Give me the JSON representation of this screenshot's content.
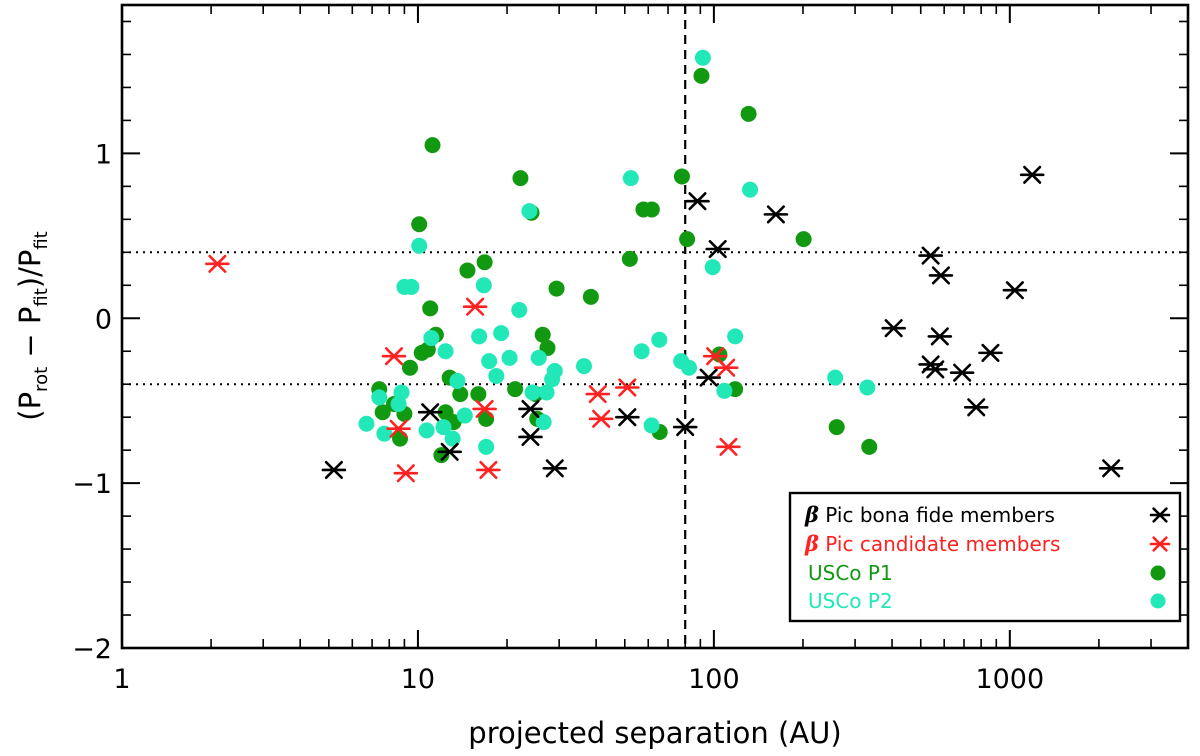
{
  "chart_data": {
    "type": "scatter",
    "title": "",
    "xlabel": "projected separation (AU)",
    "ylabel": {
      "a": "(P",
      "b": "rot",
      "c": " − P",
      "d": "fit",
      "e": ")/P",
      "f": "fit"
    },
    "xscale": "log",
    "xlim": [
      1,
      4000
    ],
    "ylim": [
      -2.0,
      1.9
    ],
    "x_ticks": [
      {
        "value": 1,
        "label": "1"
      },
      {
        "value": 10,
        "label": "10"
      },
      {
        "value": 100,
        "label": "100"
      },
      {
        "value": 1000,
        "label": "1000"
      }
    ],
    "y_ticks": [
      {
        "value": 1,
        "label": "1"
      },
      {
        "value": 0,
        "label": "0"
      },
      {
        "value": -1,
        "label": "−1"
      },
      {
        "value": -2,
        "label": "−2"
      }
    ],
    "reference_lines": {
      "horizontal_dotted": [
        0.4,
        -0.4
      ],
      "vertical_dashed": 80
    },
    "legend_position": "bottom-right",
    "series": [
      {
        "name": "β Pic bona fide members",
        "label_prefix": "β",
        "label_rest": " Pic bona fide members",
        "marker": "asterisk",
        "color": "#000000",
        "points": [
          [
            5.2,
            -0.92
          ],
          [
            11,
            -0.57
          ],
          [
            12.8,
            -0.81
          ],
          [
            24,
            -0.55
          ],
          [
            24,
            -0.72
          ],
          [
            29,
            -0.91
          ],
          [
            51,
            -0.6
          ],
          [
            80,
            -0.66
          ],
          [
            88,
            0.71
          ],
          [
            96,
            -0.36
          ],
          [
            103,
            0.42
          ],
          [
            162,
            0.63
          ],
          [
            405,
            -0.06
          ],
          [
            540,
            0.38
          ],
          [
            540,
            -0.28
          ],
          [
            560,
            -0.31
          ],
          [
            580,
            -0.11
          ],
          [
            585,
            0.26
          ],
          [
            690,
            -0.33
          ],
          [
            770,
            -0.54
          ],
          [
            860,
            -0.21
          ],
          [
            1040,
            0.17
          ],
          [
            1190,
            0.87
          ],
          [
            2200,
            -0.91
          ]
        ]
      },
      {
        "name": "β Pic candidate members",
        "label_prefix": "β",
        "label_rest": " Pic candidate members",
        "marker": "asterisk",
        "color": "#ff2222",
        "points": [
          [
            2.1,
            0.33
          ],
          [
            8.3,
            -0.23
          ],
          [
            8.6,
            -0.67
          ],
          [
            9.1,
            -0.94
          ],
          [
            15.6,
            0.07
          ],
          [
            16.8,
            -0.55
          ],
          [
            17.3,
            -0.92
          ],
          [
            40.5,
            -0.46
          ],
          [
            41.6,
            -0.61
          ],
          [
            51,
            -0.42
          ],
          [
            101,
            -0.23
          ],
          [
            110,
            -0.3
          ],
          [
            112,
            -0.78
          ]
        ]
      },
      {
        "name": "USCo P1",
        "marker": "circle",
        "color": "#119911",
        "points": [
          [
            7.4,
            -0.43
          ],
          [
            7.6,
            -0.57
          ],
          [
            8.3,
            -0.52
          ],
          [
            8.7,
            -0.73
          ],
          [
            9.0,
            -0.58
          ],
          [
            9.4,
            -0.3
          ],
          [
            10.1,
            0.57
          ],
          [
            10.3,
            -0.21
          ],
          [
            10.8,
            -0.19
          ],
          [
            11.0,
            0.06
          ],
          [
            11.2,
            1.05
          ],
          [
            11.5,
            -0.1
          ],
          [
            12.0,
            -0.83
          ],
          [
            12.4,
            -0.57
          ],
          [
            12.8,
            -0.36
          ],
          [
            13.2,
            -0.63
          ],
          [
            13.9,
            -0.46
          ],
          [
            14.7,
            0.29
          ],
          [
            16.0,
            -0.46
          ],
          [
            16.8,
            0.34
          ],
          [
            17.0,
            -0.61
          ],
          [
            21.3,
            -0.43
          ],
          [
            22.2,
            0.85
          ],
          [
            24.2,
            0.64
          ],
          [
            25.0,
            -0.46
          ],
          [
            25.3,
            -0.61
          ],
          [
            26.4,
            -0.1
          ],
          [
            27.4,
            -0.18
          ],
          [
            29.4,
            0.18
          ],
          [
            38.4,
            0.13
          ],
          [
            52.0,
            0.36
          ],
          [
            57.8,
            0.66
          ],
          [
            61.7,
            0.66
          ],
          [
            65.6,
            -0.69
          ],
          [
            78.0,
            0.86
          ],
          [
            81.2,
            0.48
          ],
          [
            90.8,
            1.47
          ],
          [
            104.4,
            -0.22
          ],
          [
            118.0,
            -0.43
          ],
          [
            131.0,
            1.24
          ],
          [
            201.0,
            0.48
          ],
          [
            260.0,
            -0.66
          ],
          [
            335.0,
            -0.78
          ]
        ]
      },
      {
        "name": "USCo P2",
        "marker": "circle",
        "color": "#22e8b8",
        "points": [
          [
            6.7,
            -0.64
          ],
          [
            7.4,
            -0.48
          ],
          [
            7.7,
            -0.7
          ],
          [
            8.6,
            -0.52
          ],
          [
            8.8,
            -0.45
          ],
          [
            9.0,
            0.19
          ],
          [
            9.5,
            0.19
          ],
          [
            10.1,
            0.44
          ],
          [
            10.7,
            -0.68
          ],
          [
            11.1,
            -0.12
          ],
          [
            12.2,
            -0.66
          ],
          [
            12.4,
            -0.2
          ],
          [
            13.1,
            -0.73
          ],
          [
            13.6,
            -0.38
          ],
          [
            14.4,
            -0.59
          ],
          [
            16.1,
            -0.11
          ],
          [
            16.7,
            0.2
          ],
          [
            17.0,
            -0.78
          ],
          [
            17.4,
            -0.26
          ],
          [
            18.4,
            -0.35
          ],
          [
            19.1,
            -0.09
          ],
          [
            20.4,
            -0.24
          ],
          [
            22.0,
            0.05
          ],
          [
            23.8,
            0.65
          ],
          [
            24.4,
            -0.45
          ],
          [
            25.6,
            -0.24
          ],
          [
            26.6,
            -0.63
          ],
          [
            27.2,
            -0.45
          ],
          [
            28.4,
            -0.37
          ],
          [
            29.0,
            -0.32
          ],
          [
            36.4,
            -0.29
          ],
          [
            52.4,
            0.85
          ],
          [
            57.0,
            -0.2
          ],
          [
            61.6,
            -0.65
          ],
          [
            65.4,
            -0.13
          ],
          [
            77.5,
            -0.26
          ],
          [
            82.4,
            -0.3
          ],
          [
            91.8,
            1.58
          ],
          [
            99.1,
            0.31
          ],
          [
            108.5,
            -0.44
          ],
          [
            118.0,
            -0.11
          ],
          [
            132.5,
            0.78
          ],
          [
            257.0,
            -0.36
          ],
          [
            330.0,
            -0.42
          ]
        ]
      }
    ]
  }
}
